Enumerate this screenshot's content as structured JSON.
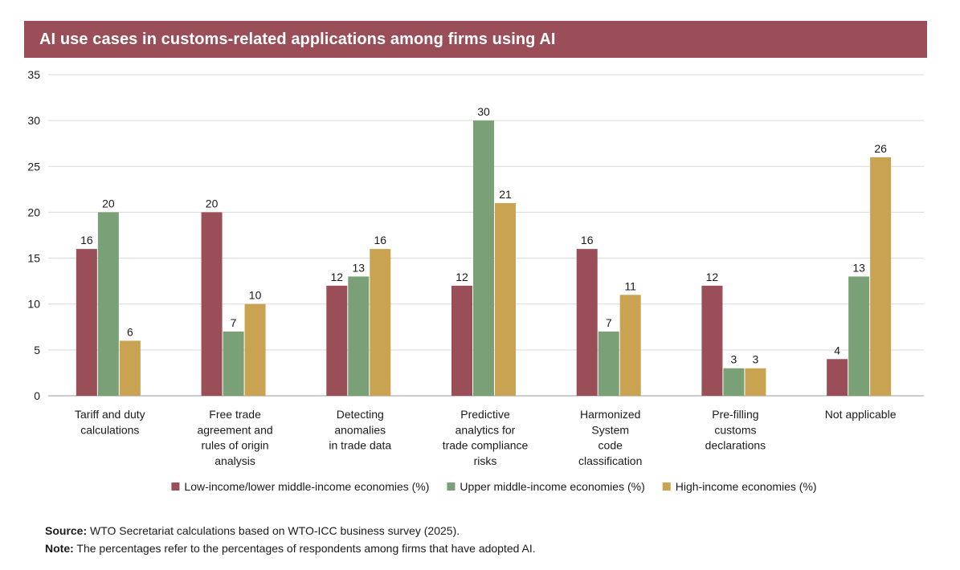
{
  "header": {
    "title": "AI use cases in customs-related applications among firms using AI"
  },
  "chart_data": {
    "type": "bar",
    "categories": [
      [
        "Tariff and duty",
        "calculations"
      ],
      [
        "Free trade",
        "agreement and",
        "rules of origin",
        "analysis"
      ],
      [
        "Detecting",
        "anomalies",
        "in trade data"
      ],
      [
        "Predictive",
        "analytics for",
        "trade compliance",
        "risks"
      ],
      [
        "Harmonized",
        "System",
        "code",
        "classification"
      ],
      [
        "Pre-filling",
        "customs",
        "declarations"
      ],
      [
        "Not applicable"
      ]
    ],
    "series": [
      {
        "name": "Low-income/lower middle-income economies (%)",
        "color": "#9a4e57",
        "values": [
          16,
          20,
          12,
          12,
          16,
          12,
          4
        ]
      },
      {
        "name": "Upper middle-income economies (%)",
        "color": "#7aa077",
        "values": [
          20,
          7,
          13,
          30,
          7,
          3,
          13
        ]
      },
      {
        "name": "High-income economies (%)",
        "color": "#c9a252",
        "values": [
          6,
          10,
          16,
          21,
          11,
          3,
          26
        ]
      }
    ],
    "ylim": [
      0,
      35
    ],
    "yticks": [
      0,
      5,
      10,
      15,
      20,
      25,
      30,
      35
    ],
    "grid": true,
    "legend": "bottom"
  },
  "footer": {
    "source_label": "Source:",
    "source_text": " WTO Secretariat calculations based on WTO-ICC business survey (2025).",
    "note_label": "Note:",
    "note_text": " The percentages refer to the percentages of respondents among firms that have adopted AI."
  }
}
